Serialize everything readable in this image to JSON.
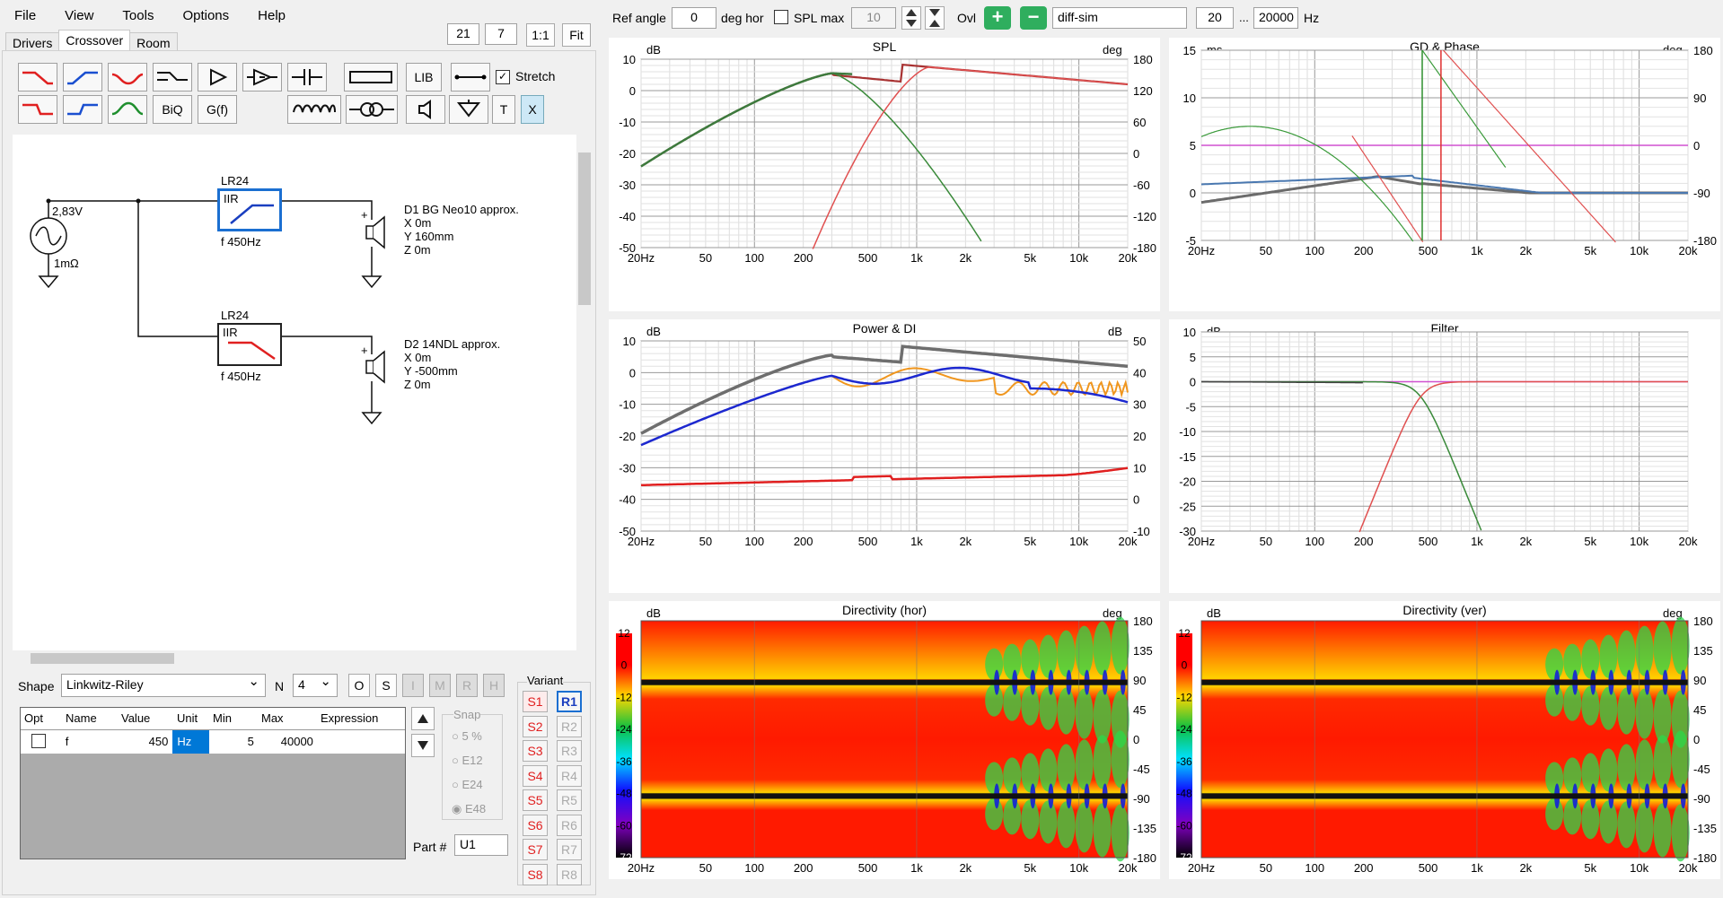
{
  "menu": [
    "File",
    "View",
    "Tools",
    "Options",
    "Help"
  ],
  "tabs": [
    "Drivers",
    "Crossover",
    "Room"
  ],
  "zoom": {
    "a": "21",
    "b": "7",
    "ratio": "1:1",
    "fit": "Fit"
  },
  "toolbar": {
    "lib": "LIB",
    "biq": "BiQ",
    "gf": "G(f)",
    "t": "T",
    "x": "X",
    "stretch": "Stretch"
  },
  "schematic": {
    "source_voltage": "2,83V",
    "source_impedance": "1mΩ",
    "block1": {
      "type": "LR24",
      "filter": "IIR",
      "freq": "f   450Hz"
    },
    "block2": {
      "type": "LR24",
      "filter": "IIR",
      "freq": "f   450Hz"
    },
    "driver1": {
      "name": "D1 BG Neo10 approx.",
      "x": "X 0m",
      "y": "Y 160mm",
      "z": "Z 0m"
    },
    "driver2": {
      "name": "D2 14NDL approx.",
      "x": "X 0m",
      "y": "Y -500mm",
      "z": "Z 0m"
    }
  },
  "shape": {
    "label": "Shape",
    "value": "Linkwitz-Riley",
    "n_label": "N",
    "n_value": "4",
    "buttons": [
      "O",
      "S",
      "I",
      "M",
      "R",
      "H"
    ]
  },
  "params": {
    "headers": [
      "Opt",
      "Name",
      "Value",
      "Unit",
      "Min",
      "Max",
      "Expression"
    ],
    "row": {
      "name": "f",
      "value": "450",
      "unit": "Hz",
      "min": "5",
      "max": "40000",
      "expression": ""
    }
  },
  "snap": {
    "label": "Snap",
    "options": [
      "5 %",
      "E12",
      "E24",
      "E48"
    ]
  },
  "part": {
    "label": "Part #",
    "value": "U1"
  },
  "variant": {
    "label": "Variant",
    "s": [
      "S1",
      "S2",
      "S3",
      "S4",
      "S5",
      "S6",
      "S7",
      "S8"
    ],
    "r": [
      "R1",
      "R2",
      "R3",
      "R4",
      "R5",
      "R6",
      "R7",
      "R8"
    ]
  },
  "topbar": {
    "ref_angle_label": "Ref angle",
    "ref_angle": "0",
    "deg_hor": "deg hor",
    "spl_max_label": "SPL max",
    "spl_max": "10",
    "ovl": "Ovl",
    "name": "diff-sim",
    "fmin": "20",
    "dots": "...",
    "fmax": "20000",
    "hz": "Hz"
  },
  "graphs": {
    "spl": {
      "title": "SPL",
      "lunit": "dB",
      "runit": "deg",
      "yl": [
        "10",
        "0",
        "-10",
        "-20",
        "-30",
        "-40",
        "-50"
      ],
      "yr": [
        "180",
        "120",
        "60",
        "0",
        "-60",
        "-120",
        "-180"
      ]
    },
    "gd": {
      "title": "GD & Phase",
      "lunit": "ms",
      "runit": "deg",
      "yl": [
        "15",
        "10",
        "5",
        "0",
        "-5"
      ],
      "yr": [
        "180",
        "90",
        "0",
        "-90",
        "-180"
      ]
    },
    "power": {
      "title": "Power & DI",
      "lunit": "dB",
      "runit": "dB",
      "yl": [
        "10",
        "0",
        "-10",
        "-20",
        "-30",
        "-40",
        "-50"
      ],
      "yr": [
        "50",
        "40",
        "30",
        "20",
        "10",
        "0",
        "-10"
      ]
    },
    "filter": {
      "title": "Filter",
      "lunit": "dB",
      "yl": [
        "10",
        "5",
        "0",
        "-5",
        "-10",
        "-15",
        "-20",
        "-25",
        "-30"
      ]
    },
    "dirh": {
      "title": "Directivity (hor)",
      "lunit": "dB",
      "runit": "deg",
      "scale": [
        "12",
        "0",
        "-12",
        "-24",
        "-36",
        "-48",
        "-60",
        "-72"
      ],
      "yr": [
        "180",
        "135",
        "90",
        "45",
        "0",
        "-45",
        "-90",
        "-135",
        "-180"
      ]
    },
    "dirv": {
      "title": "Directivity (ver)",
      "lunit": "dB",
      "runit": "deg",
      "scale": [
        "12",
        "0",
        "-12",
        "-24",
        "-36",
        "-48",
        "-60",
        "-72"
      ],
      "yr": [
        "180",
        "135",
        "90",
        "45",
        "0",
        "-45",
        "-90",
        "-135",
        "-180"
      ]
    },
    "xticks": [
      "20Hz",
      "50",
      "100",
      "200",
      "500",
      "1k",
      "2k",
      "5k",
      "10k",
      "20k"
    ]
  }
}
